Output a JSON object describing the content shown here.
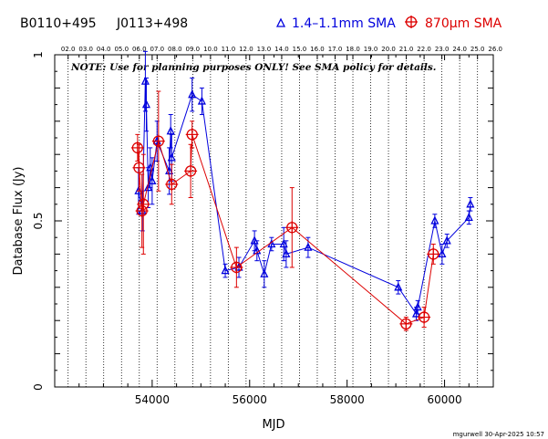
{
  "header": {
    "source_name": "B0110+495",
    "alt_name": "J0113+498",
    "legend_blue": "1.4–1.1mm SMA",
    "legend_red_unit": "870μm SMA"
  },
  "note": "NOTE: Use for planning purposes ONLY!  See SMA policy for details.",
  "credit": "mgurwell 30-Apr-2025 10:57",
  "colors": {
    "blue": "#0000dd",
    "red": "#dd0000",
    "axis": "#000000"
  },
  "chart_data": {
    "type": "scatter",
    "title": "",
    "xlabel": "MJD",
    "ylabel": "Database Flux (Jy)",
    "xlim": [
      52000,
      61000
    ],
    "ylim": [
      0,
      1.0
    ],
    "x_ticks": [
      "54000",
      "56000",
      "58000",
      "60000"
    ],
    "y_ticks": [
      "0",
      "0.5",
      "1"
    ],
    "top_axis_years": [
      "02.0",
      "03.0",
      "04.0",
      "05.0",
      "06.0",
      "07.0",
      "08.0",
      "09.0",
      "10.0",
      "11.0",
      "12.0",
      "13.0",
      "14.0",
      "15.0",
      "16.0",
      "17.0",
      "18.0",
      "19.0",
      "20.0",
      "21.0",
      "22.0",
      "23.0",
      "24.0",
      "25.0",
      "26.0"
    ],
    "year_marker_mjd": [
      52275,
      52640,
      53005,
      53371,
      53736,
      54101,
      54466,
      54832,
      55197,
      55562,
      55927,
      56293,
      56658,
      57023,
      57388,
      57754,
      58119,
      58484,
      58849,
      59215,
      59580,
      59945,
      60310,
      60676,
      61041
    ],
    "grid": "vertical dotted lines at year boundaries",
    "legend_placement": "top",
    "series": [
      {
        "name": "1.4–1.1mm SMA",
        "marker": "triangle",
        "points": [
          {
            "x": 53720,
            "y": 0.59,
            "err": 0.07
          },
          {
            "x": 53800,
            "y": 0.53,
            "err": 0.06
          },
          {
            "x": 53860,
            "y": 0.92,
            "err": 0.09
          },
          {
            "x": 53880,
            "y": 0.85,
            "err": 0.08
          },
          {
            "x": 53920,
            "y": 0.6,
            "err": 0.06
          },
          {
            "x": 53960,
            "y": 0.66,
            "err": 0.06
          },
          {
            "x": 54000,
            "y": 0.62,
            "err": 0.07
          },
          {
            "x": 54100,
            "y": 0.74,
            "err": 0.06
          },
          {
            "x": 54350,
            "y": 0.65,
            "err": 0.07
          },
          {
            "x": 54380,
            "y": 0.77,
            "err": 0.05
          },
          {
            "x": 54400,
            "y": 0.69,
            "err": 0.07
          },
          {
            "x": 54820,
            "y": 0.88,
            "err": 0.05
          },
          {
            "x": 55020,
            "y": 0.86,
            "err": 0.04
          },
          {
            "x": 55500,
            "y": 0.35,
            "err": 0.02
          },
          {
            "x": 55780,
            "y": 0.36,
            "err": 0.03
          },
          {
            "x": 56100,
            "y": 0.44,
            "err": 0.03
          },
          {
            "x": 56150,
            "y": 0.41,
            "err": 0.03
          },
          {
            "x": 56300,
            "y": 0.34,
            "err": 0.04
          },
          {
            "x": 56450,
            "y": 0.43,
            "err": 0.02
          },
          {
            "x": 56700,
            "y": 0.43,
            "err": 0.05
          },
          {
            "x": 56750,
            "y": 0.4,
            "err": 0.04
          },
          {
            "x": 57200,
            "y": 0.42,
            "err": 0.03
          },
          {
            "x": 59050,
            "y": 0.3,
            "err": 0.02
          },
          {
            "x": 59420,
            "y": 0.22,
            "err": 0.02
          },
          {
            "x": 59450,
            "y": 0.24,
            "err": 0.02
          },
          {
            "x": 59800,
            "y": 0.5,
            "err": 0.02
          },
          {
            "x": 59950,
            "y": 0.4,
            "err": 0.03
          },
          {
            "x": 60050,
            "y": 0.44,
            "err": 0.02
          },
          {
            "x": 60500,
            "y": 0.51,
            "err": 0.02
          },
          {
            "x": 60530,
            "y": 0.55,
            "err": 0.02
          }
        ]
      },
      {
        "name": "870μm SMA",
        "marker": "circle-plus",
        "points": [
          {
            "x": 53700,
            "y": 0.72,
            "err": 0.04
          },
          {
            "x": 53730,
            "y": 0.66,
            "err": 0.07
          },
          {
            "x": 53790,
            "y": 0.53,
            "err": 0.11
          },
          {
            "x": 53820,
            "y": 0.55,
            "err": 0.15
          },
          {
            "x": 54130,
            "y": 0.74,
            "err": 0.15
          },
          {
            "x": 54400,
            "y": 0.61,
            "err": 0.06
          },
          {
            "x": 54790,
            "y": 0.65,
            "err": 0.08
          },
          {
            "x": 54820,
            "y": 0.76,
            "err": 0.04
          },
          {
            "x": 55730,
            "y": 0.36,
            "err": 0.06
          },
          {
            "x": 56870,
            "y": 0.48,
            "err": 0.12
          },
          {
            "x": 59210,
            "y": 0.19,
            "err": 0.02
          },
          {
            "x": 59580,
            "y": 0.21,
            "err": 0.03
          },
          {
            "x": 59770,
            "y": 0.4,
            "err": 0.03
          }
        ]
      }
    ]
  }
}
